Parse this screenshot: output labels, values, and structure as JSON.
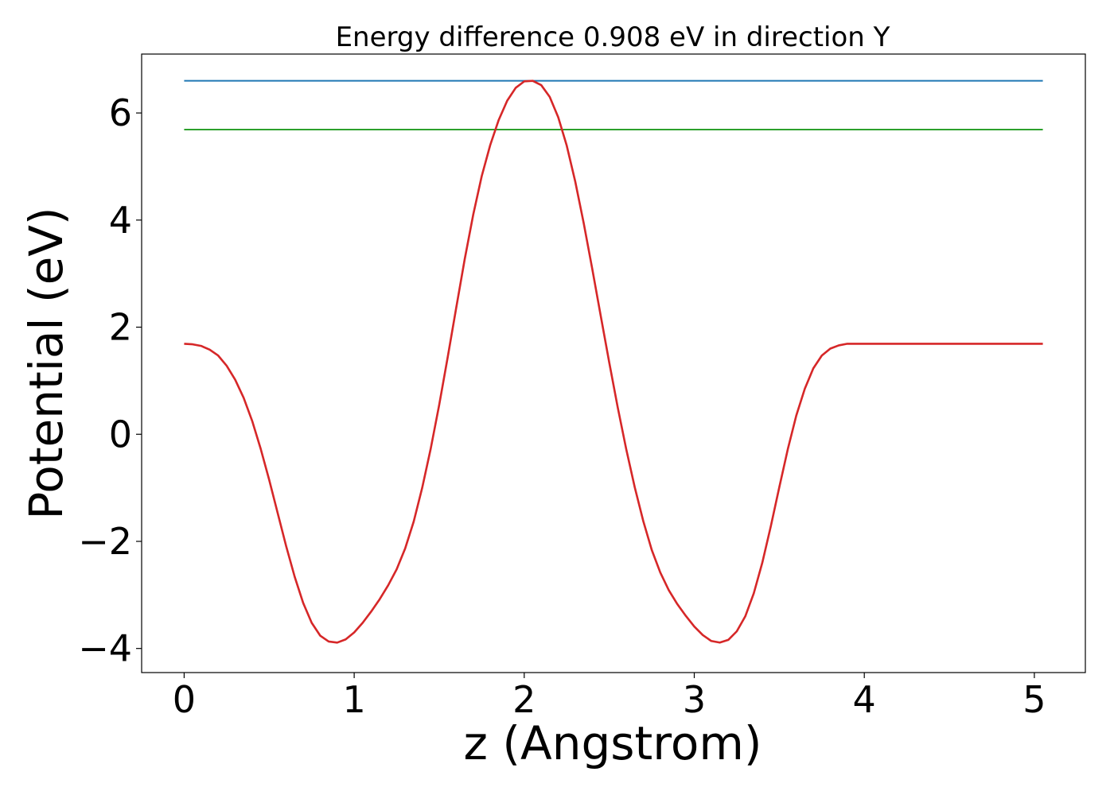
{
  "chart_data": {
    "type": "line",
    "title": "Energy difference 0.908 eV in direction Y",
    "xlabel": "z (Angstrom)",
    "ylabel": "Potential (eV)",
    "xlim": [
      -0.25,
      5.3
    ],
    "ylim": [
      -4.45,
      7.1
    ],
    "xticks": [
      0,
      1,
      2,
      3,
      4,
      5
    ],
    "xtick_labels": [
      "0",
      "1",
      "2",
      "3",
      "4",
      "5"
    ],
    "yticks": [
      -4,
      -2,
      0,
      2,
      4,
      6
    ],
    "ytick_labels": [
      "−4",
      "−2",
      "0",
      "2",
      "4",
      "6"
    ],
    "grid": false,
    "series": [
      {
        "color": "#1f77b4",
        "x": [
          0,
          5.05
        ],
        "y": [
          6.6,
          6.6
        ]
      },
      {
        "color": "#2ca02c",
        "x": [
          0,
          5.05
        ],
        "y": [
          5.69,
          5.69
        ]
      },
      {
        "color": "#d62728",
        "x": [
          0,
          0.05,
          0.1,
          0.15,
          0.2,
          0.25,
          0.3,
          0.35,
          0.4,
          0.45,
          0.5,
          0.55,
          0.6,
          0.65,
          0.7,
          0.75,
          0.8,
          0.85,
          0.9,
          0.95,
          1.0,
          1.05,
          1.1,
          1.15,
          1.2,
          1.25,
          1.3,
          1.35,
          1.4,
          1.45,
          1.5,
          1.55,
          1.6,
          1.65,
          1.7,
          1.75,
          1.8,
          1.85,
          1.9,
          1.95,
          2.0,
          2.05,
          2.1,
          2.15,
          2.2,
          2.25,
          2.3,
          2.35,
          2.4,
          2.45,
          2.5,
          2.55,
          2.6,
          2.65,
          2.7,
          2.75,
          2.8,
          2.85,
          2.9,
          2.95,
          3.0,
          3.05,
          3.1,
          3.15,
          3.2,
          3.25,
          3.3,
          3.35,
          3.4,
          3.45,
          3.5,
          3.55,
          3.6,
          3.65,
          3.7,
          3.75,
          3.8,
          3.85,
          3.9,
          3.95,
          4.0,
          4.05,
          4.1,
          4.15,
          4.2,
          4.25,
          4.3,
          4.35,
          4.4,
          4.45,
          4.5,
          4.55,
          4.6,
          4.65,
          4.7,
          4.75,
          4.8,
          4.85,
          4.9,
          4.95,
          5.0,
          5.05
        ],
        "y": [
          1.69,
          1.68,
          1.65,
          1.58,
          1.47,
          1.28,
          1.02,
          0.68,
          0.25,
          -0.27,
          -0.85,
          -1.47,
          -2.09,
          -2.66,
          -3.15,
          -3.52,
          -3.76,
          -3.87,
          -3.89,
          -3.83,
          -3.7,
          -3.52,
          -3.31,
          -3.08,
          -2.82,
          -2.52,
          -2.13,
          -1.63,
          -1.0,
          -0.27,
          0.55,
          1.44,
          2.36,
          3.27,
          4.1,
          4.82,
          5.4,
          5.87,
          6.23,
          6.47,
          6.59,
          6.6,
          6.52,
          6.3,
          5.92,
          5.39,
          4.72,
          3.94,
          3.09,
          2.21,
          1.34,
          0.5,
          -0.28,
          -0.99,
          -1.62,
          -2.16,
          -2.58,
          -2.91,
          -3.17,
          -3.39,
          -3.59,
          -3.75,
          -3.86,
          -3.89,
          -3.84,
          -3.68,
          -3.4,
          -2.97,
          -2.4,
          -1.72,
          -0.99,
          -0.28,
          0.35,
          0.85,
          1.23,
          1.47,
          1.6,
          1.66,
          1.69,
          1.69,
          1.69,
          1.69,
          1.69,
          1.69,
          1.69,
          1.69,
          1.69,
          1.69,
          1.69,
          1.69,
          1.69,
          1.69,
          1.69,
          1.69,
          1.69,
          1.69,
          1.69,
          1.69,
          1.69,
          1.69,
          1.69,
          1.69
        ]
      }
    ]
  }
}
